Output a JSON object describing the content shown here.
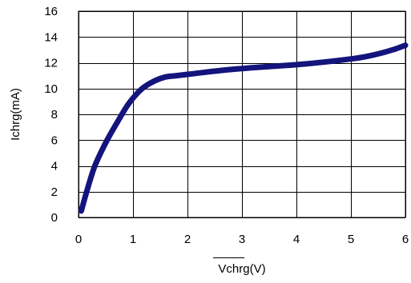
{
  "chart_data": {
    "type": "line",
    "title": "",
    "xlabel": "Vchrg(V)",
    "xlabel_overline": true,
    "ylabel": "Ichrg(mA)",
    "xlim": [
      0,
      6
    ],
    "ylim": [
      0,
      16
    ],
    "xticks": [
      "0",
      "1",
      "2",
      "3",
      "4",
      "5",
      "6"
    ],
    "yticks": [
      "0",
      "2",
      "4",
      "6",
      "8",
      "10",
      "12",
      "14",
      "16"
    ],
    "grid": true,
    "legend": "none",
    "line_color": "#14147d",
    "series": [
      {
        "x": [
          0.05,
          0.15,
          0.3,
          0.5,
          0.7,
          0.9,
          1.05,
          1.2,
          1.4,
          1.6,
          1.8,
          2.0,
          2.5,
          3.0,
          3.5,
          4.0,
          4.5,
          5.0,
          5.3,
          5.6,
          5.8,
          6.0
        ],
        "y": [
          0.5,
          2.0,
          4.0,
          5.8,
          7.3,
          8.7,
          9.5,
          10.1,
          10.6,
          10.9,
          11.0,
          11.1,
          11.35,
          11.55,
          11.7,
          11.85,
          12.05,
          12.3,
          12.5,
          12.8,
          13.05,
          13.35
        ]
      }
    ]
  }
}
